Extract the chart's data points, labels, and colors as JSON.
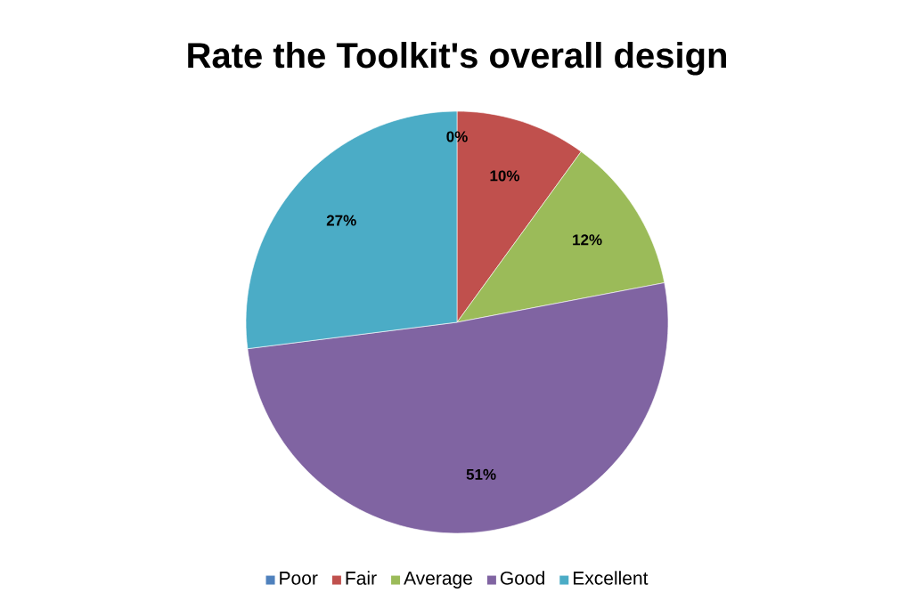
{
  "chart_data": {
    "type": "pie",
    "title": "Rate the Toolkit's overall design",
    "categories": [
      "Poor",
      "Fair",
      "Average",
      "Good",
      "Excellent"
    ],
    "values": [
      0,
      10,
      12,
      51,
      27
    ],
    "colors": [
      "#4f81bd",
      "#c0504d",
      "#9bbb59",
      "#8064a2",
      "#4bacc6"
    ],
    "value_labels": [
      "0%",
      "10%",
      "12%",
      "51%",
      "27%"
    ],
    "legend": "bottom"
  }
}
